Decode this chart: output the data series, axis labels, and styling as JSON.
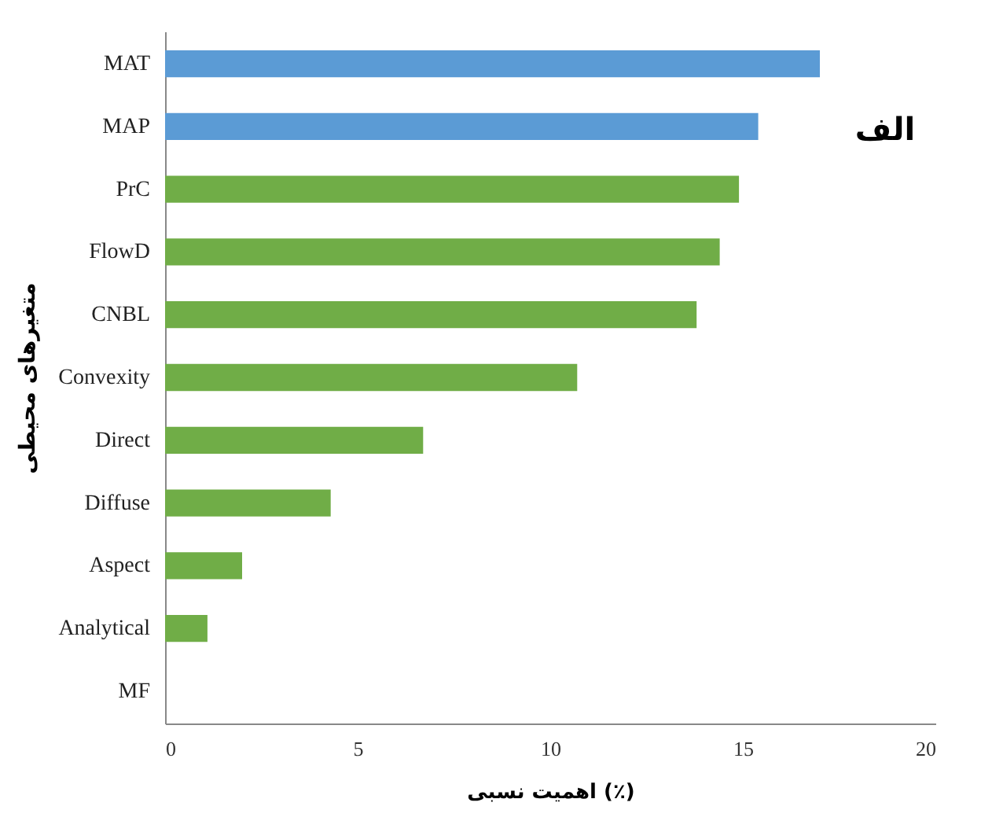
{
  "chart_data": {
    "type": "bar",
    "orientation": "horizontal",
    "categories": [
      "MAT",
      "MAP",
      "PrC",
      "FlowD",
      "CNBL",
      "Convexity",
      "Direct",
      "Diffuse",
      "Aspect",
      "Analytical",
      "MF"
    ],
    "values": [
      17.0,
      15.4,
      14.9,
      14.4,
      13.8,
      10.7,
      6.7,
      4.3,
      2.0,
      1.1,
      0
    ],
    "colors": [
      "#5b9bd5",
      "#5b9bd5",
      "#70ad47",
      "#70ad47",
      "#70ad47",
      "#70ad47",
      "#70ad47",
      "#70ad47",
      "#70ad47",
      "#70ad47",
      "#70ad47"
    ],
    "xlim": [
      0,
      20
    ],
    "xticks": [
      0,
      5,
      10,
      15,
      20
    ],
    "xlabel": "اهمیت نسبی (٪)",
    "ylabel": "متغیرهای محیطی",
    "annotations": [
      "الف"
    ],
    "grid": false
  }
}
